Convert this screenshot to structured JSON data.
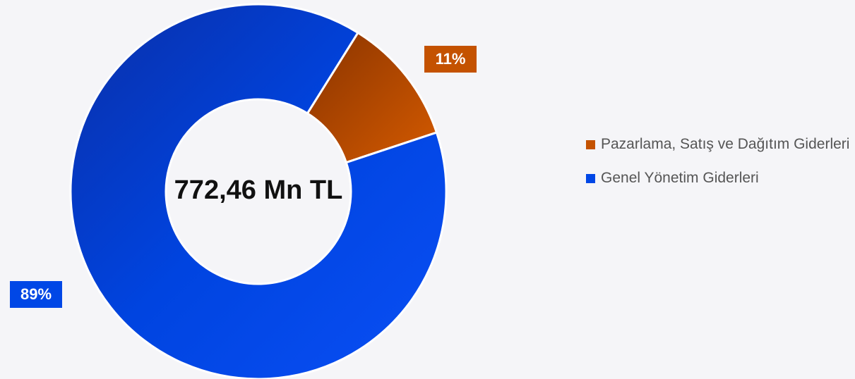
{
  "chart_data": {
    "type": "pie",
    "donut": true,
    "center_label": "772,46 Mn TL",
    "categories": [
      "Pazarlama, Satış ve Dağıtım Giderleri",
      "Genel Yönetim Giderleri"
    ],
    "values": [
      11,
      89
    ],
    "value_labels": [
      "11%",
      "89%"
    ],
    "colors": [
      "#c45200",
      "#0047e6"
    ],
    "legend": "right"
  }
}
